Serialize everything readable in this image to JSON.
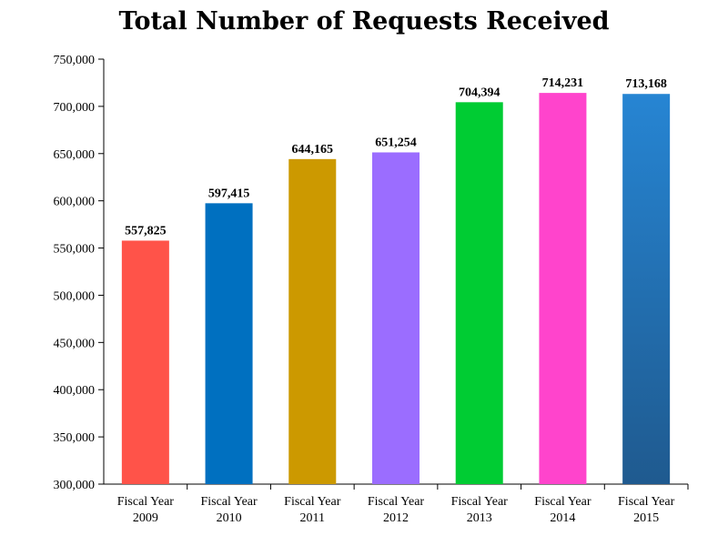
{
  "chart_data": {
    "type": "bar",
    "title": "Total Number of Requests Received",
    "xlabel": "",
    "ylabel": "",
    "ylim": [
      300000,
      750000
    ],
    "yticks": [
      "300,000",
      "350,000",
      "400,000",
      "450,000",
      "500,000",
      "550,000",
      "600,000",
      "650,000",
      "700,000",
      "750,000"
    ],
    "ytick_values": [
      300000,
      350000,
      400000,
      450000,
      500000,
      550000,
      600000,
      650000,
      700000,
      750000
    ],
    "grid": false,
    "categories": [
      [
        "Fiscal Year",
        "2009"
      ],
      [
        "Fiscal Year",
        "2010"
      ],
      [
        "Fiscal Year",
        "2011"
      ],
      [
        "Fiscal Year",
        "2012"
      ],
      [
        "Fiscal Year",
        "2013"
      ],
      [
        "Fiscal Year",
        "2014"
      ],
      [
        "Fiscal Year",
        "2015"
      ]
    ],
    "values": [
      557825,
      597415,
      644165,
      651254,
      704394,
      714231,
      713168
    ],
    "data_labels": [
      "557,825",
      "597,415",
      "644,165",
      "651,254",
      "704,394",
      "714,231",
      "713,168"
    ],
    "colors": [
      "#FF5349",
      "#0070C0",
      "#CC9900",
      "#9B6DFF",
      "#00CC33",
      "#FF44CC",
      "#2680CF"
    ]
  }
}
